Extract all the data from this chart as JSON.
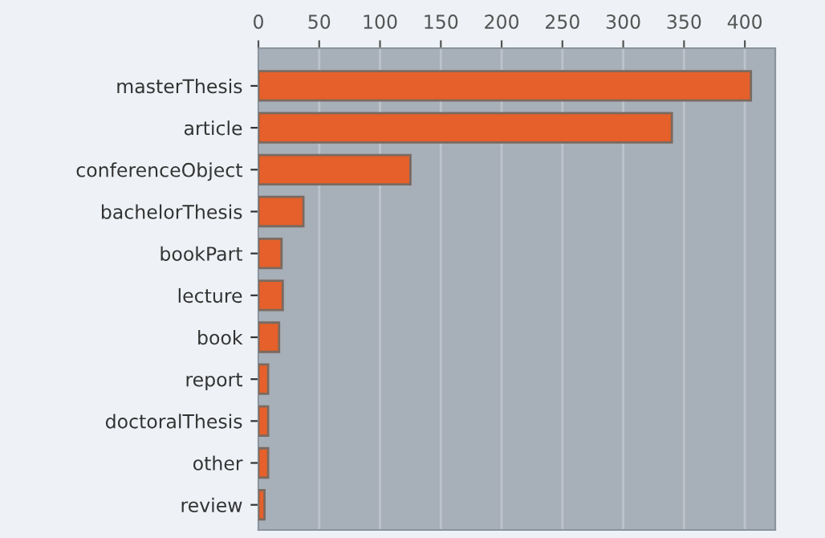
{
  "chart_data": {
    "type": "bar",
    "orientation": "horizontal",
    "categories": [
      "masterThesis",
      "article",
      "conferenceObject",
      "bachelorThesis",
      "bookPart",
      "lecture",
      "book",
      "report",
      "doctoralThesis",
      "other",
      "review"
    ],
    "values": [
      405,
      340,
      125,
      37,
      19,
      20,
      17,
      8,
      8,
      8,
      5
    ],
    "color": "#e5602a",
    "xlim": [
      0,
      425
    ],
    "xticks": [
      0,
      50,
      100,
      150,
      200,
      250,
      300,
      350,
      400
    ],
    "grid": "x"
  }
}
